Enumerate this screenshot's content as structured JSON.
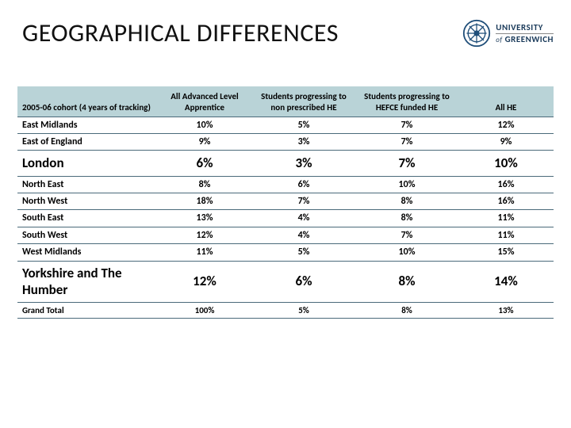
{
  "title": "GEOGRAPHICAL DIFFERENCES",
  "logo": {
    "line1": "UNIVERSITY",
    "line2": "GREENWICH",
    "seal_color": "#1f4e79",
    "of": "of"
  },
  "table": {
    "header_bg": "#b9d3d7",
    "border_color": "#4a6a7a",
    "columns": [
      "2005-06 cohort (4 years of tracking)",
      "All Advanced Level Apprentice",
      "Students progressing to non prescribed HE",
      "Students progressing to HEFCE funded HE",
      "All  HE"
    ],
    "rows": [
      {
        "emph": false,
        "cells": [
          "East Midlands",
          "10%",
          "5%",
          "7%",
          "12%"
        ]
      },
      {
        "emph": false,
        "cells": [
          "East of England",
          "9%",
          "3%",
          "7%",
          "9%"
        ]
      },
      {
        "emph": true,
        "cells": [
          "London",
          "6%",
          "3%",
          "7%",
          "10%"
        ]
      },
      {
        "emph": false,
        "cells": [
          "North East",
          "8%",
          "6%",
          "10%",
          "16%"
        ]
      },
      {
        "emph": false,
        "cells": [
          "North West",
          "18%",
          "7%",
          "8%",
          "16%"
        ]
      },
      {
        "emph": false,
        "cells": [
          "South East",
          "13%",
          "4%",
          "8%",
          "11%"
        ]
      },
      {
        "emph": false,
        "cells": [
          "South West",
          "12%",
          "4%",
          "7%",
          "11%"
        ]
      },
      {
        "emph": false,
        "cells": [
          "West Midlands",
          "11%",
          "5%",
          "10%",
          "15%"
        ]
      },
      {
        "emph": true,
        "tall": true,
        "cells": [
          "Yorkshire and The Humber",
          "12%",
          "6%",
          "8%",
          "14%"
        ]
      },
      {
        "emph": false,
        "total": true,
        "cells": [
          "Grand Total",
          "100%",
          "5%",
          "8%",
          "13%"
        ]
      }
    ]
  }
}
